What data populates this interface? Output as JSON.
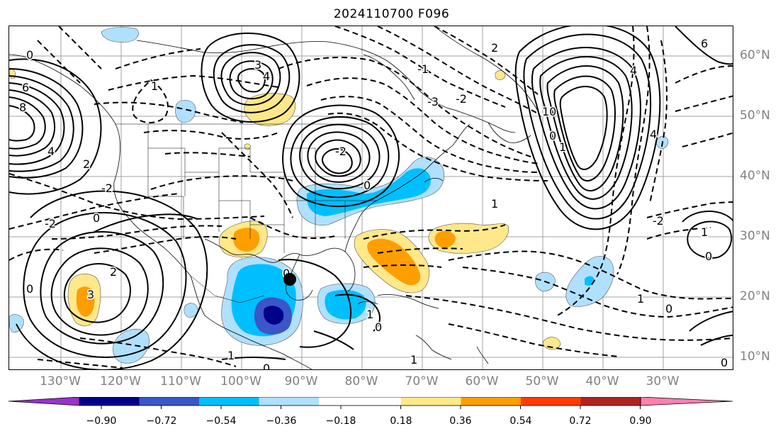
{
  "title": "2024110700 F096",
  "map": {
    "type": "weather-model-anomaly-map",
    "lon_range": [
      -137,
      -17
    ],
    "lat_range": [
      7.5,
      65
    ],
    "lon_labels": [
      "130°W",
      "120°W",
      "110°W",
      "100°W",
      "90°W",
      "80°W",
      "70°W",
      "60°W",
      "50°W",
      "40°W",
      "30°W"
    ],
    "lat_labels": [
      "60°N",
      "50°N",
      "40°N",
      "30°N",
      "20°N",
      "10°N"
    ],
    "contour_labels": [
      "0",
      "2",
      "4",
      "6",
      "8",
      "10",
      "6",
      "8",
      "4",
      "2",
      "0",
      "1",
      "2",
      "3",
      "2",
      "1",
      "0",
      "-2",
      "2",
      "0",
      "3",
      "4",
      "2",
      "0",
      "-2",
      "-1",
      "1",
      "-1",
      "0",
      "1",
      "-2",
      "-3",
      "-2",
      "-4",
      "-3",
      "-2",
      "0",
      "-1",
      "1",
      "0",
      "1",
      "2",
      "-1",
      "-1",
      "1",
      "0",
      "1",
      "0",
      "-1"
    ],
    "marker": {
      "label": "cyclone-position-marker",
      "color": "#000000"
    }
  },
  "colorbar": {
    "extend": "both",
    "colors": [
      "#9932cc",
      "#00008b",
      "#3a56c8",
      "#00bfff",
      "#b0e0ff",
      "#ffffff",
      "#ffe88a",
      "#ff9e00",
      "#ff3c00",
      "#b22222",
      "#ff7fb0"
    ],
    "tick_labels": [
      "−0.90",
      "−0.72",
      "−0.54",
      "−0.36",
      "−0.18",
      "0.18",
      "0.36",
      "0.54",
      "0.72",
      "0.90"
    ]
  }
}
